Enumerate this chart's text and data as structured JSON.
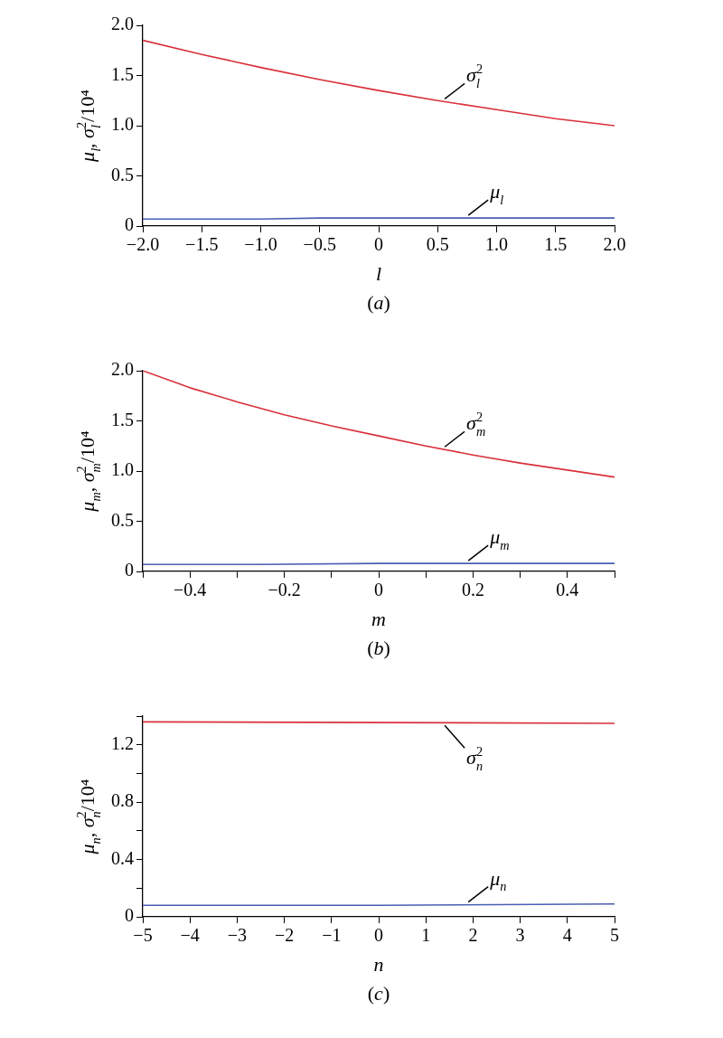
{
  "chart_data": [
    {
      "type": "line",
      "xlabel": "l",
      "ylabel": "μ$_{l}$, σ$_{l}$$^{2}$/10⁴",
      "annotations": [
        "(a)"
      ],
      "xlim": [
        -2,
        2
      ],
      "xticks": [
        {
          "value": -2,
          "label": "−2.0"
        },
        {
          "value": -1.5,
          "label": "−1.5"
        },
        {
          "value": -1,
          "label": "−1.0"
        },
        {
          "value": -0.5,
          "label": "−0.5"
        },
        0,
        0.5,
        {
          "value": 1,
          "label": "1.0"
        },
        1.5,
        {
          "value": 2,
          "label": "2.0"
        }
      ],
      "ylim": [
        0,
        2
      ],
      "yticks": [
        0,
        0.5,
        {
          "value": 1,
          "label": "1.0"
        },
        1.5,
        {
          "value": 2,
          "label": "2.0"
        }
      ],
      "series": [
        {
          "name": "σ$_{l}$$^{2}$",
          "color": "#d9303a",
          "x": [
            -2,
            -1.5,
            -1,
            -0.5,
            0,
            0.5,
            1,
            1.5,
            2
          ],
          "values": [
            1.85,
            1.71,
            1.58,
            1.46,
            1.35,
            1.25,
            1.16,
            1.07,
            1.0
          ]
        },
        {
          "name": "μ$_{l}$",
          "color": "#4a5fb5",
          "x": [
            -2,
            -1.5,
            -1,
            -0.5,
            0,
            0.5,
            1,
            1.5,
            2
          ],
          "values": [
            0.07,
            0.07,
            0.07,
            0.08,
            0.08,
            0.08,
            0.08,
            0.08,
            0.08
          ]
        }
      ]
    },
    {
      "type": "line",
      "xlabel": "m",
      "ylabel": "μ$_{m}$, σ$_{m}$$^{2}$/10⁴",
      "annotations": [
        "(b)"
      ],
      "xlim": [
        -0.5,
        0.5
      ],
      "xticks": [
        {
          "value": -0.5,
          "label": null
        },
        {
          "value": -0.4,
          "label": "−0.4"
        },
        {
          "value": -0.3,
          "label": null
        },
        {
          "value": -0.2,
          "label": "−0.2"
        },
        {
          "value": -0.1,
          "label": null
        },
        0,
        {
          "value": 0.1,
          "label": null
        },
        0.2,
        {
          "value": 0.3,
          "label": null
        },
        0.4,
        {
          "value": 0.5,
          "label": null
        }
      ],
      "ylim": [
        0,
        2
      ],
      "yticks": [
        0,
        0.5,
        {
          "value": 1,
          "label": "1.0"
        },
        1.5,
        {
          "value": 2,
          "label": "2.0"
        }
      ],
      "series": [
        {
          "name": "σ$_{m}$$^{2}$",
          "color": "#d9303a",
          "x": [
            -0.5,
            -0.4,
            -0.3,
            -0.2,
            -0.1,
            0,
            0.1,
            0.2,
            0.3,
            0.4,
            0.5
          ],
          "values": [
            2.0,
            1.83,
            1.69,
            1.56,
            1.45,
            1.35,
            1.25,
            1.16,
            1.08,
            1.01,
            0.94
          ]
        },
        {
          "name": "μ$_{m}$",
          "color": "#4a5fb5",
          "x": [
            -0.5,
            -0.25,
            0,
            0.25,
            0.5
          ],
          "values": [
            0.07,
            0.07,
            0.08,
            0.08,
            0.08
          ]
        }
      ]
    },
    {
      "type": "line",
      "xlabel": "n",
      "ylabel": "μ$_{n}$, σ$_{n}$$^{2}$/10⁴",
      "annotations": [
        "(c)"
      ],
      "xlim": [
        -5,
        5
      ],
      "xticks": [
        {
          "value": -5,
          "label": "−5"
        },
        {
          "value": -4,
          "label": "−4"
        },
        {
          "value": -3,
          "label": "−3"
        },
        {
          "value": -2,
          "label": "−2"
        },
        {
          "value": -1,
          "label": "−1"
        },
        0,
        1,
        2,
        3,
        4,
        5
      ],
      "ylim": [
        0,
        1.4
      ],
      "yticks": [
        0,
        {
          "value": 0.2,
          "label": null
        },
        0.4,
        {
          "value": 0.6,
          "label": null
        },
        0.8,
        {
          "value": 1,
          "label": null
        },
        1.2,
        {
          "value": 1.4,
          "label": null
        }
      ],
      "series": [
        {
          "name": "σ$_{n}$$^{2}$",
          "color": "#d9303a",
          "x": [
            -5,
            0,
            5
          ],
          "values": [
            1.36,
            1.355,
            1.35
          ]
        },
        {
          "name": "μ$_{n}$",
          "color": "#4a5fb5",
          "x": [
            -5,
            0,
            5
          ],
          "values": [
            0.08,
            0.08,
            0.09
          ]
        }
      ]
    }
  ]
}
